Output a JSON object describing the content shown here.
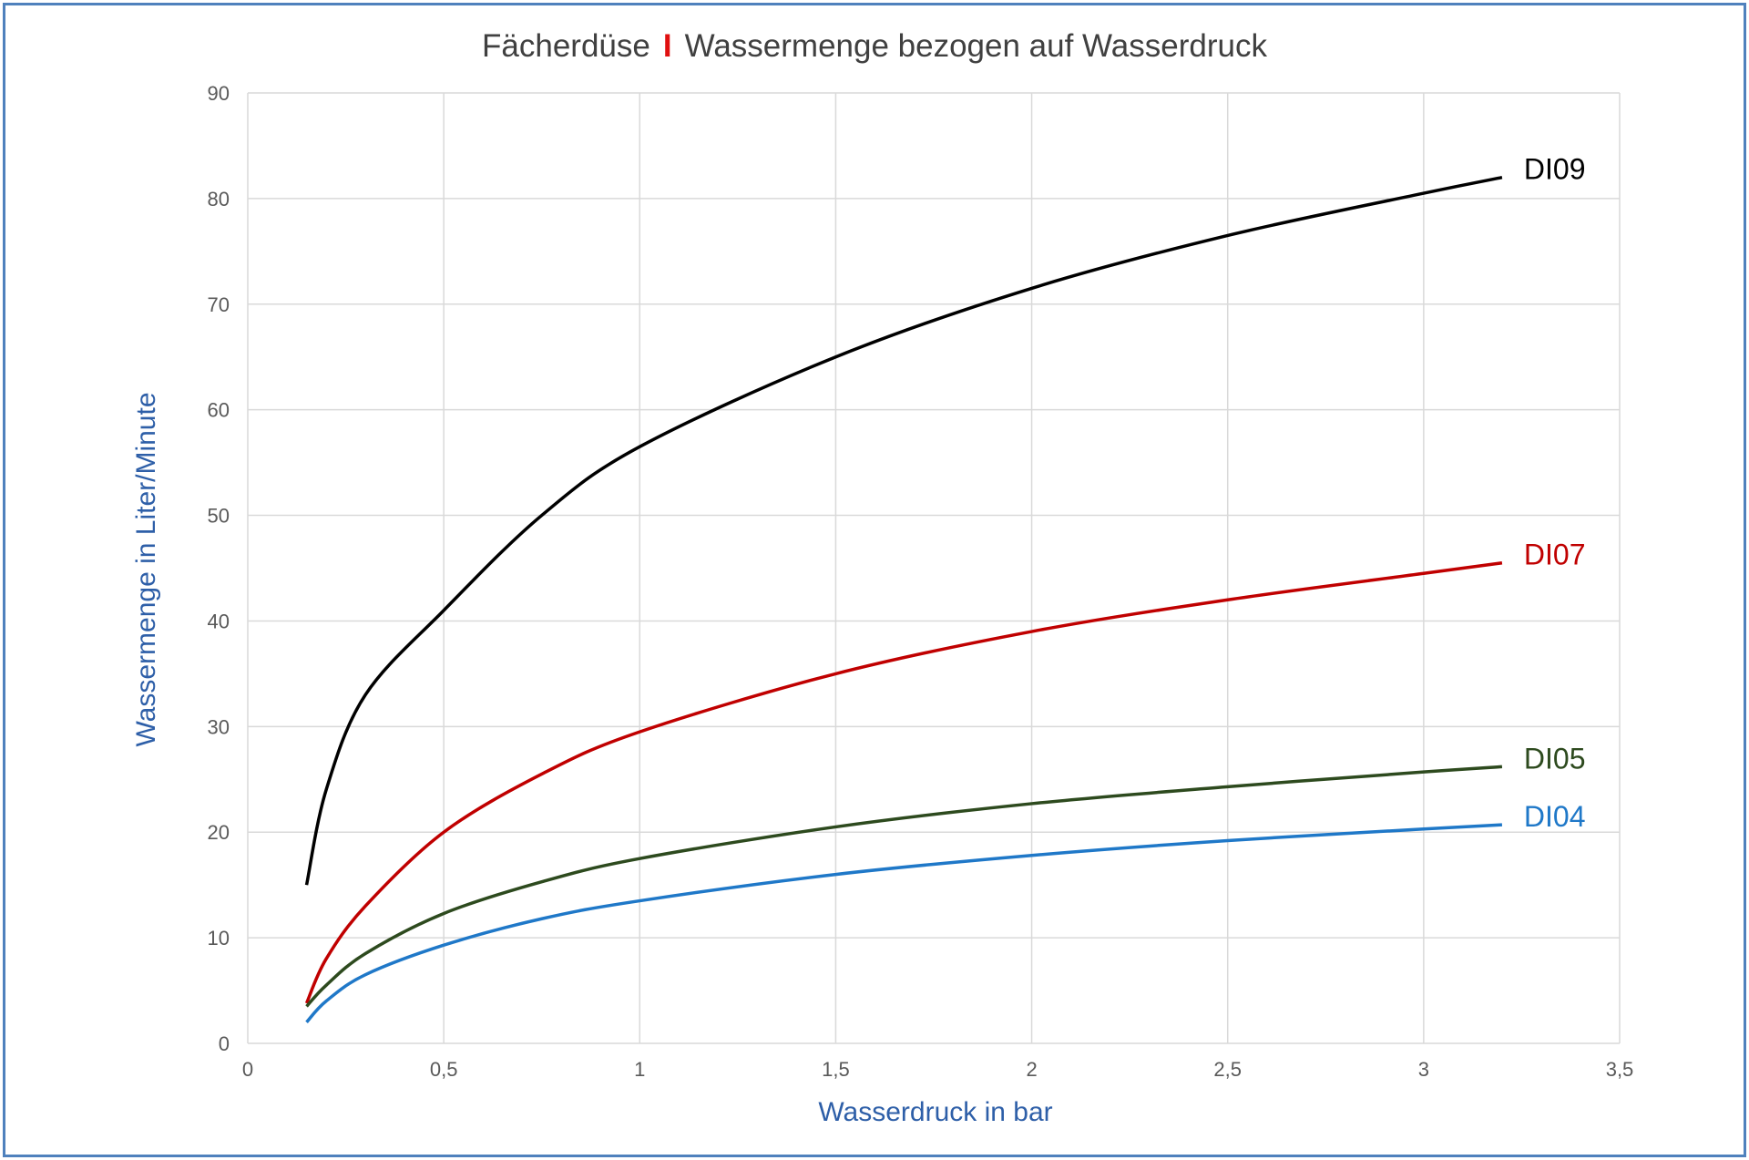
{
  "chart_data": {
    "type": "line",
    "title": {
      "part1": "Fächerdüse",
      "separator": "I",
      "part2": "Wassermenge bezogen auf Wasserdruck"
    },
    "xlabel": "Wasserdruck in bar",
    "ylabel": "Wassermenge in Liter/Minute",
    "xlim": [
      0,
      3.5
    ],
    "ylim": [
      0,
      90
    ],
    "x_ticks": [
      "0",
      "0,5",
      "1",
      "1,5",
      "2",
      "2,5",
      "3",
      "3,5"
    ],
    "x_tick_values": [
      0,
      0.5,
      1,
      1.5,
      2,
      2.5,
      3,
      3.5
    ],
    "y_ticks": [
      "0",
      "10",
      "20",
      "30",
      "40",
      "50",
      "60",
      "70",
      "80",
      "90"
    ],
    "y_tick_values": [
      0,
      10,
      20,
      30,
      40,
      50,
      60,
      70,
      80,
      90
    ],
    "grid": true,
    "legend": "labels at line ends (right)",
    "colors": {
      "title_separator": "#e01010",
      "axis_title": "#2e5fa8",
      "frame": "#4f81bd",
      "grid": "#d9d9d9"
    },
    "series": [
      {
        "name": "DI09",
        "color": "#000000",
        "x": [
          0.15,
          0.2,
          0.3,
          0.5,
          0.75,
          1.0,
          1.5,
          2.0,
          2.5,
          3.0,
          3.2
        ],
        "y": [
          15,
          24,
          33,
          41,
          50,
          56.5,
          65,
          71.5,
          76.5,
          80.5,
          82
        ]
      },
      {
        "name": "DI07",
        "color": "#c00000",
        "x": [
          0.15,
          0.2,
          0.3,
          0.5,
          0.75,
          1.0,
          1.5,
          2.0,
          2.5,
          3.0,
          3.2
        ],
        "y": [
          3.8,
          8,
          13,
          20,
          25.5,
          29.5,
          35,
          39,
          42,
          44.5,
          45.5
        ]
      },
      {
        "name": "DI05",
        "color": "#2d4a1e",
        "x": [
          0.15,
          0.2,
          0.3,
          0.5,
          0.75,
          1.0,
          1.5,
          2.0,
          2.5,
          3.0,
          3.2
        ],
        "y": [
          3.5,
          5.5,
          8.5,
          12.3,
          15.3,
          17.5,
          20.5,
          22.7,
          24.3,
          25.7,
          26.2
        ]
      },
      {
        "name": "DI04",
        "color": "#1f78c8",
        "x": [
          0.15,
          0.2,
          0.3,
          0.5,
          0.75,
          1.0,
          1.5,
          2.0,
          2.5,
          3.0,
          3.2
        ],
        "y": [
          2,
          4,
          6.5,
          9.3,
          11.8,
          13.5,
          16,
          17.8,
          19.2,
          20.3,
          20.7
        ]
      }
    ]
  }
}
